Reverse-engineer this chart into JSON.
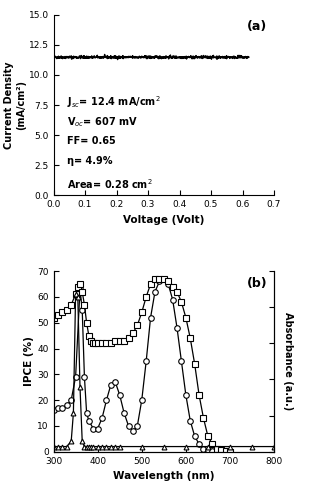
{
  "panel_a": {
    "title": "(a)",
    "xlabel": "Voltage (Volt)",
    "ylabel": "Current Density\n(mA/cm²)",
    "xlim": [
      0.0,
      0.7
    ],
    "ylim": [
      0.0,
      15.0
    ],
    "xticks": [
      0.0,
      0.1,
      0.2,
      0.3,
      0.4,
      0.5,
      0.6,
      0.7
    ],
    "yticks": [
      0.0,
      2.5,
      5.0,
      7.5,
      10.0,
      12.5,
      15.0
    ],
    "jsc": 12.4,
    "voc": 0.607,
    "annotation_line1": "J$_{sc}$= 12.4 mA/cm$^2$",
    "annotation_line2": "V$_{oc}$= 607 mV",
    "annotation_line3": "FF= 0.65",
    "annotation_line4": "η= 4.9%",
    "annotation_line5": "Area= 0.28 cm$^2$"
  },
  "panel_b": {
    "title": "(b)",
    "xlabel": "Wavelength (nm)",
    "ylabel_left": "IPCE (%)",
    "ylabel_right": "Absorbance (a.u.)",
    "xlim": [
      300,
      800
    ],
    "ylim_left": [
      0,
      70
    ],
    "xticks": [
      300,
      400,
      500,
      600,
      700,
      800
    ],
    "yticks_left": [
      0,
      10,
      20,
      30,
      40,
      50,
      60,
      70
    ],
    "circle_wl": [
      300,
      310,
      320,
      330,
      340,
      350,
      360,
      365,
      370,
      375,
      380,
      390,
      400,
      410,
      420,
      430,
      440,
      450,
      460,
      470,
      480,
      490,
      500,
      510,
      520,
      530,
      540,
      550,
      560,
      570,
      580,
      590,
      600,
      610,
      620,
      630,
      640,
      650,
      660,
      670,
      680,
      690,
      700
    ],
    "circle_ipce": [
      16,
      17,
      17,
      18,
      20,
      29,
      63,
      55,
      29,
      15,
      12,
      9,
      9,
      13,
      20,
      26,
      27,
      22,
      15,
      10,
      8,
      10,
      20,
      35,
      52,
      62,
      66,
      67,
      65,
      59,
      48,
      35,
      22,
      12,
      6,
      3,
      1,
      0.5,
      0.2,
      0.1,
      0,
      0,
      0
    ],
    "square_wl": [
      300,
      310,
      320,
      330,
      340,
      350,
      355,
      360,
      365,
      370,
      375,
      380,
      385,
      390,
      395,
      400,
      410,
      420,
      430,
      440,
      450,
      460,
      470,
      480,
      490,
      500,
      510,
      520,
      530,
      540,
      550,
      560,
      570,
      580,
      590,
      600,
      610,
      620,
      630,
      640,
      650,
      660,
      670,
      680,
      690,
      700
    ],
    "square_ipce": [
      52,
      53,
      54,
      55,
      57,
      61,
      64,
      65,
      62,
      57,
      50,
      45,
      43,
      42,
      42,
      42,
      42,
      42,
      42,
      43,
      43,
      43,
      44,
      46,
      49,
      54,
      60,
      65,
      67,
      67,
      67,
      66,
      64,
      62,
      58,
      52,
      44,
      34,
      22,
      13,
      6,
      3,
      1,
      0.5,
      0.2,
      0
    ],
    "triangle_wl": [
      300,
      310,
      320,
      330,
      340,
      345,
      350,
      355,
      360,
      365,
      370,
      375,
      380,
      385,
      390,
      400,
      410,
      420,
      430,
      440,
      450,
      500,
      550,
      600,
      650,
      700,
      750,
      800
    ],
    "triangle_ipce": [
      2,
      2,
      2,
      2,
      4,
      15,
      61,
      60,
      25,
      4,
      2,
      2,
      2,
      2,
      2,
      2,
      2,
      2,
      2,
      2,
      2,
      2,
      2,
      2,
      2,
      2,
      2,
      2
    ]
  }
}
